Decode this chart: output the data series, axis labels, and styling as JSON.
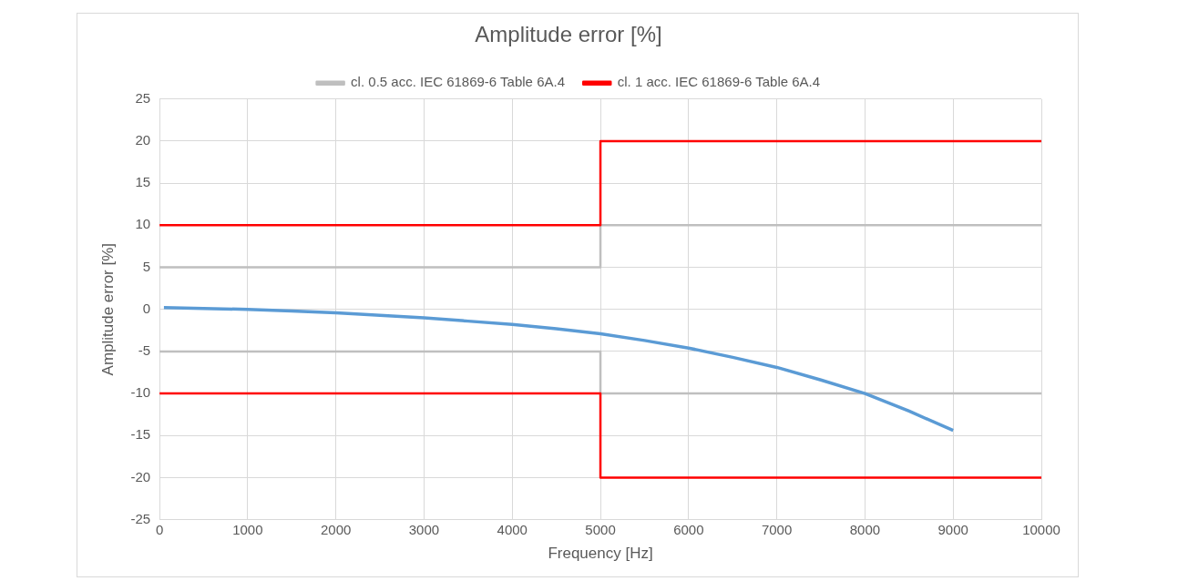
{
  "chart_data": {
    "type": "line",
    "title": "Amplitude error [%]",
    "xlabel": "Frequency [Hz]",
    "ylabel": "Amplitude error [%]",
    "xlim": [
      0,
      10000
    ],
    "xticks": [
      0,
      1000,
      2000,
      3000,
      4000,
      5000,
      6000,
      7000,
      8000,
      9000,
      10000
    ],
    "ylim": [
      -25,
      25
    ],
    "yticks": [
      -25,
      -20,
      -15,
      -10,
      -5,
      0,
      5,
      10,
      15,
      20,
      25
    ],
    "grid": true,
    "legend": "top",
    "marker": "none",
    "line_style": "solid",
    "series": [
      {
        "name": "cl. 0.5 acc. IEC 61869-6 Table 6A.4",
        "color": "#bfbfbf",
        "x": [
          0,
          5000,
          5000,
          10000
        ],
        "values": [
          5,
          5,
          10,
          10
        ]
      },
      {
        "color": "#bfbfbf",
        "x": [
          0,
          5000,
          5000,
          10000
        ],
        "values": [
          -5,
          -5,
          -10,
          -10
        ]
      },
      {
        "name": "cl. 1 acc. IEC 61869-6 Table 6A.4",
        "color": "#ff0000",
        "x": [
          0,
          5000,
          5000,
          10000
        ],
        "values": [
          10,
          10,
          20,
          20
        ]
      },
      {
        "color": "#ff0000",
        "x": [
          0,
          5000,
          5000,
          10000
        ],
        "values": [
          -10,
          -10,
          -20,
          -20
        ]
      },
      {
        "color": "#5b9bd5",
        "x": [
          50,
          500,
          1000,
          1500,
          2000,
          2500,
          3000,
          3500,
          4000,
          4500,
          5000,
          5500,
          6000,
          6500,
          7000,
          7500,
          8000,
          8500,
          9000
        ],
        "values": [
          0.2,
          0.1,
          0,
          -0.2,
          -0.4,
          -0.7,
          -1.0,
          -1.4,
          -1.8,
          -2.3,
          -2.9,
          -3.7,
          -4.6,
          -5.7,
          -6.9,
          -8.4,
          -10.0,
          -12.1,
          -14.4
        ]
      }
    ]
  }
}
